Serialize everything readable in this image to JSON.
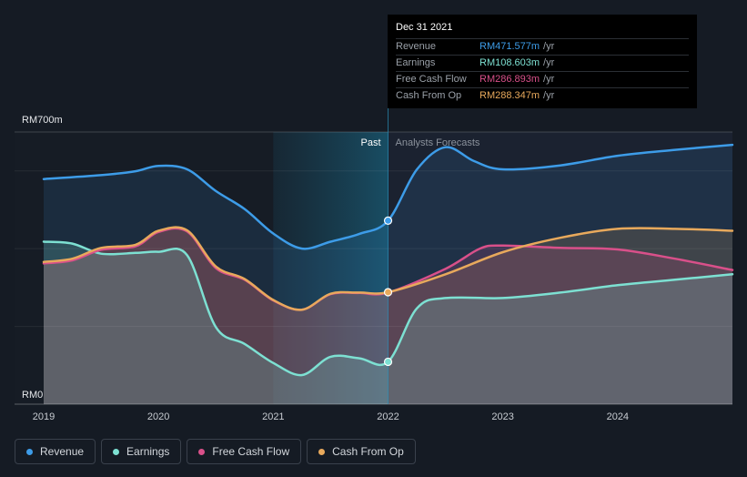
{
  "tooltip": {
    "date": "Dec 31 2021",
    "rows": [
      {
        "label": "Revenue",
        "value": "RM471.577m",
        "unit": "/yr",
        "color": "#3d9ce8"
      },
      {
        "label": "Earnings",
        "value": "RM108.603m",
        "unit": "/yr",
        "color": "#7de0d2"
      },
      {
        "label": "Free Cash Flow",
        "value": "RM286.893m",
        "unit": "/yr",
        "color": "#d9508a"
      },
      {
        "label": "Cash From Op",
        "value": "RM288.347m",
        "unit": "/yr",
        "color": "#e8a95c"
      }
    ]
  },
  "legend": [
    {
      "label": "Revenue",
      "color": "#3d9ce8"
    },
    {
      "label": "Earnings",
      "color": "#7de0d2"
    },
    {
      "label": "Free Cash Flow",
      "color": "#d9508a"
    },
    {
      "label": "Cash From Op",
      "color": "#e8a95c"
    }
  ],
  "chart_data": {
    "type": "area",
    "y_unit": "RM m",
    "ylim": [
      0,
      700
    ],
    "y_tick_labels": [
      {
        "value": 700,
        "label": "RM700m"
      },
      {
        "value": 0,
        "label": "RM0"
      }
    ],
    "xlim": [
      2019,
      2025
    ],
    "x_ticks": [
      2019,
      2020,
      2021,
      2022,
      2023,
      2024
    ],
    "divider_x": 2022,
    "past_label": "Past",
    "forecast_label": "Analysts Forecasts",
    "series": [
      {
        "name": "Revenue",
        "color": "#3d9ce8",
        "points": [
          [
            2019,
            579
          ],
          [
            2019.5,
            589
          ],
          [
            2019.8,
            599
          ],
          [
            2020,
            613
          ],
          [
            2020.25,
            604
          ],
          [
            2020.5,
            548
          ],
          [
            2020.75,
            502
          ],
          [
            2021,
            439
          ],
          [
            2021.25,
            400
          ],
          [
            2021.5,
            418
          ],
          [
            2021.75,
            438
          ],
          [
            2022,
            472
          ],
          [
            2022.25,
            603
          ],
          [
            2022.5,
            661
          ],
          [
            2022.75,
            625
          ],
          [
            2023,
            604
          ],
          [
            2023.5,
            614
          ],
          [
            2024,
            639
          ],
          [
            2024.5,
            654
          ],
          [
            2025,
            667
          ]
        ]
      },
      {
        "name": "Earnings",
        "color": "#7de0d2",
        "points": [
          [
            2019,
            418
          ],
          [
            2019.25,
            413
          ],
          [
            2019.5,
            387
          ],
          [
            2019.8,
            389
          ],
          [
            2020,
            392
          ],
          [
            2020.25,
            383
          ],
          [
            2020.5,
            198
          ],
          [
            2020.75,
            155
          ],
          [
            2021,
            106
          ],
          [
            2021.25,
            75
          ],
          [
            2021.5,
            122
          ],
          [
            2021.75,
            118
          ],
          [
            2022,
            109
          ],
          [
            2022.25,
            246
          ],
          [
            2022.5,
            273
          ],
          [
            2023,
            273
          ],
          [
            2023.5,
            287
          ],
          [
            2024,
            306
          ],
          [
            2024.5,
            320
          ],
          [
            2025,
            334
          ]
        ]
      },
      {
        "name": "Free Cash Flow",
        "color": "#d9508a",
        "points": [
          [
            2019,
            362
          ],
          [
            2019.25,
            370
          ],
          [
            2019.5,
            397
          ],
          [
            2019.8,
            406
          ],
          [
            2020,
            443
          ],
          [
            2020.25,
            444
          ],
          [
            2020.5,
            350
          ],
          [
            2020.75,
            320
          ],
          [
            2021,
            267
          ],
          [
            2021.25,
            243
          ],
          [
            2021.5,
            283
          ],
          [
            2021.75,
            286
          ],
          [
            2022,
            287
          ],
          [
            2022.5,
            348
          ],
          [
            2022.8,
            400
          ],
          [
            2023,
            408
          ],
          [
            2023.5,
            402
          ],
          [
            2024,
            398
          ],
          [
            2024.5,
            374
          ],
          [
            2025,
            345
          ]
        ]
      },
      {
        "name": "Cash From Op",
        "color": "#e8a95c",
        "points": [
          [
            2019,
            366
          ],
          [
            2019.25,
            374
          ],
          [
            2019.5,
            402
          ],
          [
            2019.8,
            410
          ],
          [
            2020,
            446
          ],
          [
            2020.25,
            447
          ],
          [
            2020.5,
            354
          ],
          [
            2020.75,
            322
          ],
          [
            2021,
            268
          ],
          [
            2021.25,
            243
          ],
          [
            2021.5,
            284
          ],
          [
            2021.75,
            287
          ],
          [
            2022,
            288
          ],
          [
            2022.5,
            334
          ],
          [
            2023,
            391
          ],
          [
            2023.5,
            428
          ],
          [
            2024,
            451
          ],
          [
            2024.5,
            451
          ],
          [
            2025,
            446
          ]
        ]
      }
    ],
    "highlight_x": 2022
  }
}
